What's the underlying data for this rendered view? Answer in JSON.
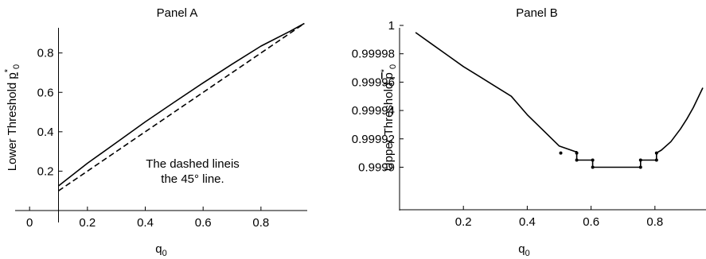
{
  "chart_data": [
    {
      "type": "line",
      "title": "Panel A",
      "xlabel": "q",
      "xlabel_sub": "0",
      "ylabel": "Lower Threshold ",
      "ylabel_sym": "p",
      "ylabel_sup": "*",
      "ylabel_sub": "0",
      "xlim": [
        -0.05,
        0.96
      ],
      "ylim": [
        0.0,
        0.96
      ],
      "x_axis_at": 0.0,
      "y_axis_at": 0.1,
      "xticks": [
        "0",
        "0.2",
        "0.4",
        "0.6",
        "0.8"
      ],
      "xtick_values": [
        0,
        0.2,
        0.4,
        0.6,
        0.8
      ],
      "yticks": [
        "0.2",
        "0.4",
        "0.6",
        "0.8"
      ],
      "ytick_values": [
        0.2,
        0.4,
        0.6,
        0.8
      ],
      "annotation": [
        "The dashed lineis",
        "the 45° line."
      ],
      "series": [
        {
          "style": "solid",
          "x": [
            0.1,
            0.2,
            0.3,
            0.4,
            0.5,
            0.6,
            0.7,
            0.8,
            0.9,
            0.95
          ],
          "y": [
            0.125,
            0.24,
            0.345,
            0.45,
            0.55,
            0.648,
            0.743,
            0.835,
            0.91,
            0.95
          ]
        },
        {
          "style": "dashed",
          "x": [
            0.1,
            0.95
          ],
          "y": [
            0.1,
            0.95
          ]
        }
      ]
    },
    {
      "type": "line",
      "title": "Panel B",
      "xlabel": "q",
      "xlabel_sub": "0",
      "ylabel": "Upper Threshold ",
      "ylabel_sym": "p",
      "ylabel_sup": "*",
      "ylabel_sub": "0",
      "xlim": [
        0.0,
        0.96
      ],
      "ylim": [
        0.99987,
        1.0
      ],
      "xticks": [
        "0.2",
        "0.4",
        "0.6",
        "0.8"
      ],
      "xtick_values": [
        0.2,
        0.4,
        0.6,
        0.8
      ],
      "yticks": [
        "0.9999",
        "0.99992",
        "0.99994",
        "0.99996",
        "0.99998",
        "1"
      ],
      "ytick_values": [
        0.9999,
        0.99992,
        0.99994,
        0.99996,
        0.99998,
        1.0
      ],
      "series": [
        {
          "style": "solid",
          "x": [
            0.05,
            0.1,
            0.15,
            0.2,
            0.25,
            0.3,
            0.35,
            0.4,
            0.45,
            0.5,
            0.55,
            0.555,
            0.555,
            0.605,
            0.605,
            0.755,
            0.755,
            0.805,
            0.805,
            0.82,
            0.85,
            0.88,
            0.9,
            0.92,
            0.95
          ],
          "y": [
            0.999995,
            0.999987,
            0.999979,
            0.999971,
            0.999964,
            0.999957,
            0.99995,
            0.999937,
            0.999926,
            0.999915,
            0.999911,
            0.999911,
            0.999905,
            0.999905,
            0.9999,
            0.9999,
            0.999905,
            0.999905,
            0.99991,
            0.999912,
            0.999918,
            0.999927,
            0.999934,
            0.999942,
            0.999956
          ]
        }
      ],
      "markers": [
        {
          "x": 0.505,
          "y": 0.99991
        },
        {
          "x": 0.555,
          "y": 0.99991
        },
        {
          "x": 0.555,
          "y": 0.999905
        },
        {
          "x": 0.605,
          "y": 0.999905
        },
        {
          "x": 0.605,
          "y": 0.9999
        },
        {
          "x": 0.755,
          "y": 0.9999
        },
        {
          "x": 0.755,
          "y": 0.999905
        },
        {
          "x": 0.805,
          "y": 0.999905
        },
        {
          "x": 0.805,
          "y": 0.99991
        }
      ]
    }
  ]
}
